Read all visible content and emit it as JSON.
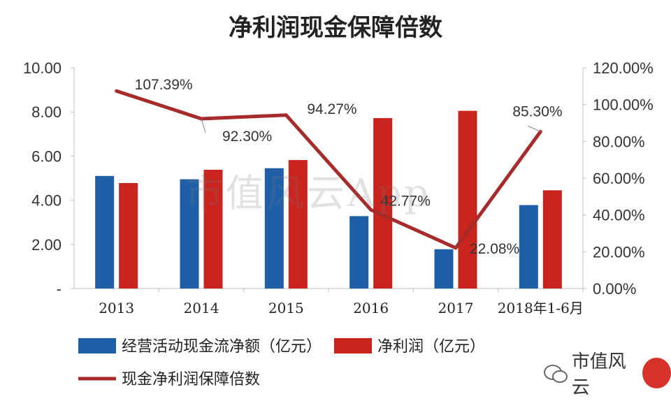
{
  "chart_data": {
    "type": "bar+line",
    "title": "净利润现金保障倍数",
    "categories": [
      "2013",
      "2014",
      "2015",
      "2016",
      "2017",
      "2018年1-6月"
    ],
    "series": [
      {
        "name": "经营活动现金流净额（亿元）",
        "type": "bar",
        "axis": "left",
        "values": [
          5.1,
          4.95,
          5.45,
          3.28,
          1.78,
          3.78
        ],
        "color": "#1f5fa8"
      },
      {
        "name": "净利润（亿元）",
        "type": "bar",
        "axis": "left",
        "values": [
          4.78,
          5.38,
          5.82,
          7.72,
          8.05,
          4.45
        ],
        "color": "#c9241e"
      },
      {
        "name": "现金净利润保障倍数",
        "type": "line",
        "axis": "right",
        "values": [
          107.39,
          92.3,
          94.27,
          42.77,
          22.08,
          85.3
        ],
        "labels": [
          "107.39%",
          "92.30%",
          "94.27%",
          "42.77%",
          "22.08%",
          "85.30%"
        ],
        "color": "#a72b2b"
      }
    ],
    "y_left": {
      "ylim": [
        0,
        10
      ],
      "ticks": [
        "-",
        "2.00",
        "4.00",
        "6.00",
        "8.00",
        "10.00"
      ]
    },
    "y_right": {
      "ylim": [
        0,
        120
      ],
      "ticks": [
        "0.00%",
        "20.00%",
        "40.00%",
        "60.00%",
        "80.00%",
        "100.00%",
        "120.00%"
      ]
    },
    "grid": false,
    "legend": "bottom"
  },
  "watermark": "市值风云App",
  "brand": {
    "name": "市值风云"
  },
  "colors": {
    "bar_blue": "#1f5fa8",
    "bar_red": "#c9241e",
    "line": "#a72b2b",
    "axis": "#bfbfbf"
  },
  "icons": {
    "wechat": "wechat-icon"
  }
}
